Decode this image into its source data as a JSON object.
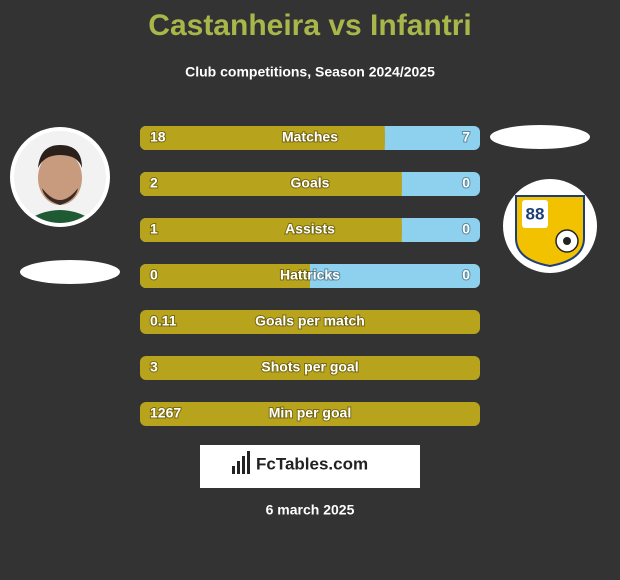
{
  "header": {
    "title": "Castanheira vs Infantri",
    "subtitle": "Club competitions, Season 2024/2025"
  },
  "rows": [
    {
      "label": "Matches",
      "left": 18,
      "right": 7
    },
    {
      "label": "Goals",
      "left": 2,
      "right": 0
    },
    {
      "label": "Assists",
      "left": 1,
      "right": 0
    },
    {
      "label": "Hattricks",
      "left": 0,
      "right": 0
    },
    {
      "label": "Goals per match",
      "left": 0.11
    },
    {
      "label": "Shots per goal",
      "left": 3
    },
    {
      "label": "Min per goal",
      "left": 1267
    }
  ],
  "badge": {
    "number": "88"
  },
  "footer": {
    "brand": "FcTables.com",
    "date": "6 march 2025"
  }
}
